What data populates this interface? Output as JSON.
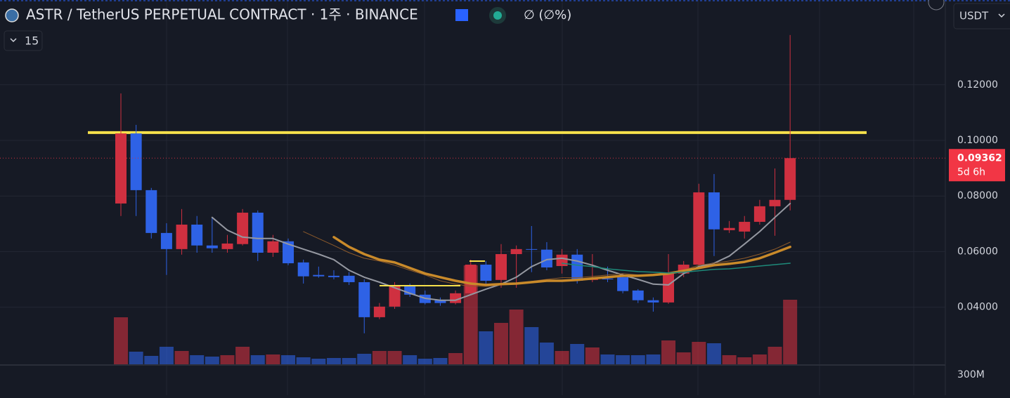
{
  "chart_data": {
    "type": "candlestick",
    "title": "ASTR / TetherUS PERPETUAL CONTRACT · 1주 · BINANCE",
    "change_text": "∅ (∅%)",
    "indicator_count": "15",
    "currency": "USDT",
    "countdown": "5d 6h",
    "volume_scale_label": "300M",
    "up_color": "#cf3040",
    "down_color": "#2e62e6",
    "ylim": [
      0.0192,
      0.1505
    ],
    "yticks": [
      {
        "value": 0.04,
        "label": "0.04000"
      },
      {
        "value": 0.06,
        "label": "0.06000"
      },
      {
        "value": 0.08,
        "label": "0.08000"
      },
      {
        "value": 0.1,
        "label": "0.10000"
      },
      {
        "value": 0.12,
        "label": "0.12000"
      }
    ],
    "grid": true,
    "open": [
      0.0773,
      0.1025,
      0.0821,
      0.0667,
      0.0609,
      0.0697,
      0.0622,
      0.0609,
      0.0627,
      0.074,
      0.0596,
      0.0637,
      0.0561,
      0.0516,
      0.0513,
      0.0513,
      0.049,
      0.0364,
      0.0402,
      0.0475,
      0.0445,
      0.0425,
      0.0415,
      0.045,
      0.0553,
      0.0498,
      0.0591,
      0.0609,
      0.0607,
      0.0548,
      0.0589,
      0.0498,
      0.0503,
      0.0508,
      0.046,
      0.0425,
      0.0417,
      0.0521,
      0.0553,
      0.0813,
      0.0677,
      0.0672,
      0.0707,
      0.0763,
      0.0786
    ],
    "high": [
      0.1169,
      0.1056,
      0.0829,
      0.0702,
      0.0753,
      0.0728,
      0.0723,
      0.066,
      0.0753,
      0.0748,
      0.066,
      0.0647,
      0.0571,
      0.0546,
      0.0533,
      0.0526,
      0.05,
      0.0415,
      0.049,
      0.0485,
      0.046,
      0.0435,
      0.046,
      0.0571,
      0.0566,
      0.0627,
      0.0622,
      0.0692,
      0.0634,
      0.0609,
      0.0609,
      0.0591,
      0.0546,
      0.0521,
      0.0465,
      0.0435,
      0.0591,
      0.0566,
      0.0844,
      0.0879,
      0.071,
      0.0728,
      0.0786,
      0.0899,
      0.1379
    ],
    "low": [
      0.0728,
      0.0728,
      0.0647,
      0.0516,
      0.0589,
      0.0596,
      0.0596,
      0.0596,
      0.0622,
      0.0566,
      0.0581,
      0.0551,
      0.0485,
      0.0506,
      0.05,
      0.048,
      0.0306,
      0.0357,
      0.0394,
      0.0437,
      0.041,
      0.0405,
      0.041,
      0.0445,
      0.0475,
      0.047,
      0.047,
      0.0526,
      0.0533,
      0.0521,
      0.0485,
      0.049,
      0.049,
      0.045,
      0.0415,
      0.0384,
      0.0412,
      0.0508,
      0.0546,
      0.0584,
      0.0667,
      0.0647,
      0.0697,
      0.0657,
      0.0748
    ],
    "close": [
      0.1025,
      0.0821,
      0.0667,
      0.0609,
      0.0697,
      0.0622,
      0.0612,
      0.0629,
      0.074,
      0.0596,
      0.0637,
      0.0558,
      0.0511,
      0.0511,
      0.0508,
      0.049,
      0.0364,
      0.0402,
      0.048,
      0.0445,
      0.0415,
      0.0415,
      0.045,
      0.0553,
      0.0495,
      0.0591,
      0.0609,
      0.0607,
      0.0543,
      0.0589,
      0.0495,
      0.0503,
      0.05,
      0.0458,
      0.0425,
      0.0417,
      0.0521,
      0.0553,
      0.0813,
      0.068,
      0.0685,
      0.0707,
      0.0763,
      0.0786,
      0.09362
    ],
    "volume": [
      335000000,
      90000000,
      60000000,
      125000000,
      95000000,
      65000000,
      55000000,
      65000000,
      125000000,
      65000000,
      70000000,
      65000000,
      50000000,
      40000000,
      45000000,
      45000000,
      75000000,
      95000000,
      95000000,
      65000000,
      40000000,
      45000000,
      80000000,
      705000000,
      235000000,
      295000000,
      390000000,
      265000000,
      155000000,
      95000000,
      145000000,
      120000000,
      70000000,
      65000000,
      65000000,
      70000000,
      170000000,
      85000000,
      160000000,
      150000000,
      65000000,
      50000000,
      70000000,
      125000000,
      460000000
    ],
    "vlim": [
      0,
      1000000000
    ],
    "series": [
      {
        "color": "#9598a1",
        "width": 2,
        "values": [
          null,
          null,
          null,
          null,
          null,
          null,
          0.0723,
          0.0677,
          0.0652,
          0.0647,
          0.0647,
          0.0627,
          0.0609,
          0.0591,
          0.0571,
          0.0533,
          0.0508,
          0.049,
          0.047,
          0.045,
          0.0432,
          0.0425,
          0.0425,
          0.0445,
          0.0465,
          0.0483,
          0.0508,
          0.0546,
          0.0571,
          0.0576,
          0.0566,
          0.0551,
          0.0533,
          0.0516,
          0.05,
          0.0483,
          0.048,
          0.0521,
          0.0546,
          0.0558,
          0.0584,
          0.0627,
          0.0672,
          0.0723,
          0.0773
        ]
      },
      {
        "color": "#8d5a2b",
        "width": 1,
        "values": [
          null,
          null,
          null,
          null,
          null,
          null,
          null,
          null,
          null,
          null,
          null,
          null,
          0.0672,
          0.0647,
          0.0622,
          0.0596,
          0.0576,
          0.0566,
          0.0551,
          0.0533,
          0.0516,
          0.0495,
          0.0483,
          0.0475,
          0.0475,
          0.048,
          0.0485,
          0.0493,
          0.05,
          0.0506,
          0.0506,
          0.0511,
          0.0516,
          0.0521,
          0.0516,
          0.0516,
          0.0521,
          0.0533,
          0.0551,
          0.0558,
          0.0566,
          0.0576,
          0.0591,
          0.0609,
          0.0634
        ]
      },
      {
        "color": "#c98a2a",
        "width": 3.5,
        "values": [
          null,
          null,
          null,
          null,
          null,
          null,
          null,
          null,
          null,
          null,
          null,
          null,
          null,
          null,
          0.0652,
          0.0617,
          0.0591,
          0.0571,
          0.0561,
          0.0541,
          0.0521,
          0.0508,
          0.0495,
          0.0485,
          0.048,
          0.0483,
          0.0485,
          0.049,
          0.0495,
          0.0495,
          0.0498,
          0.0503,
          0.0508,
          0.0513,
          0.0513,
          0.0516,
          0.0521,
          0.0531,
          0.0541,
          0.0551,
          0.0556,
          0.0563,
          0.0576,
          0.0596,
          0.0617
        ]
      },
      {
        "color": "#1e8a7a",
        "width": 1.5,
        "values": [
          null,
          null,
          null,
          null,
          null,
          null,
          null,
          null,
          null,
          null,
          null,
          null,
          null,
          null,
          null,
          null,
          null,
          null,
          null,
          null,
          null,
          null,
          null,
          null,
          null,
          null,
          null,
          null,
          null,
          0.0558,
          0.0551,
          0.0546,
          0.0538,
          0.0533,
          0.0528,
          0.0526,
          0.0523,
          0.0526,
          0.0531,
          0.0536,
          0.0538,
          0.0543,
          0.0548,
          0.0553,
          0.0558
        ]
      }
    ],
    "level": {
      "value": 0.1028,
      "color": "#f5e04b"
    }
  }
}
